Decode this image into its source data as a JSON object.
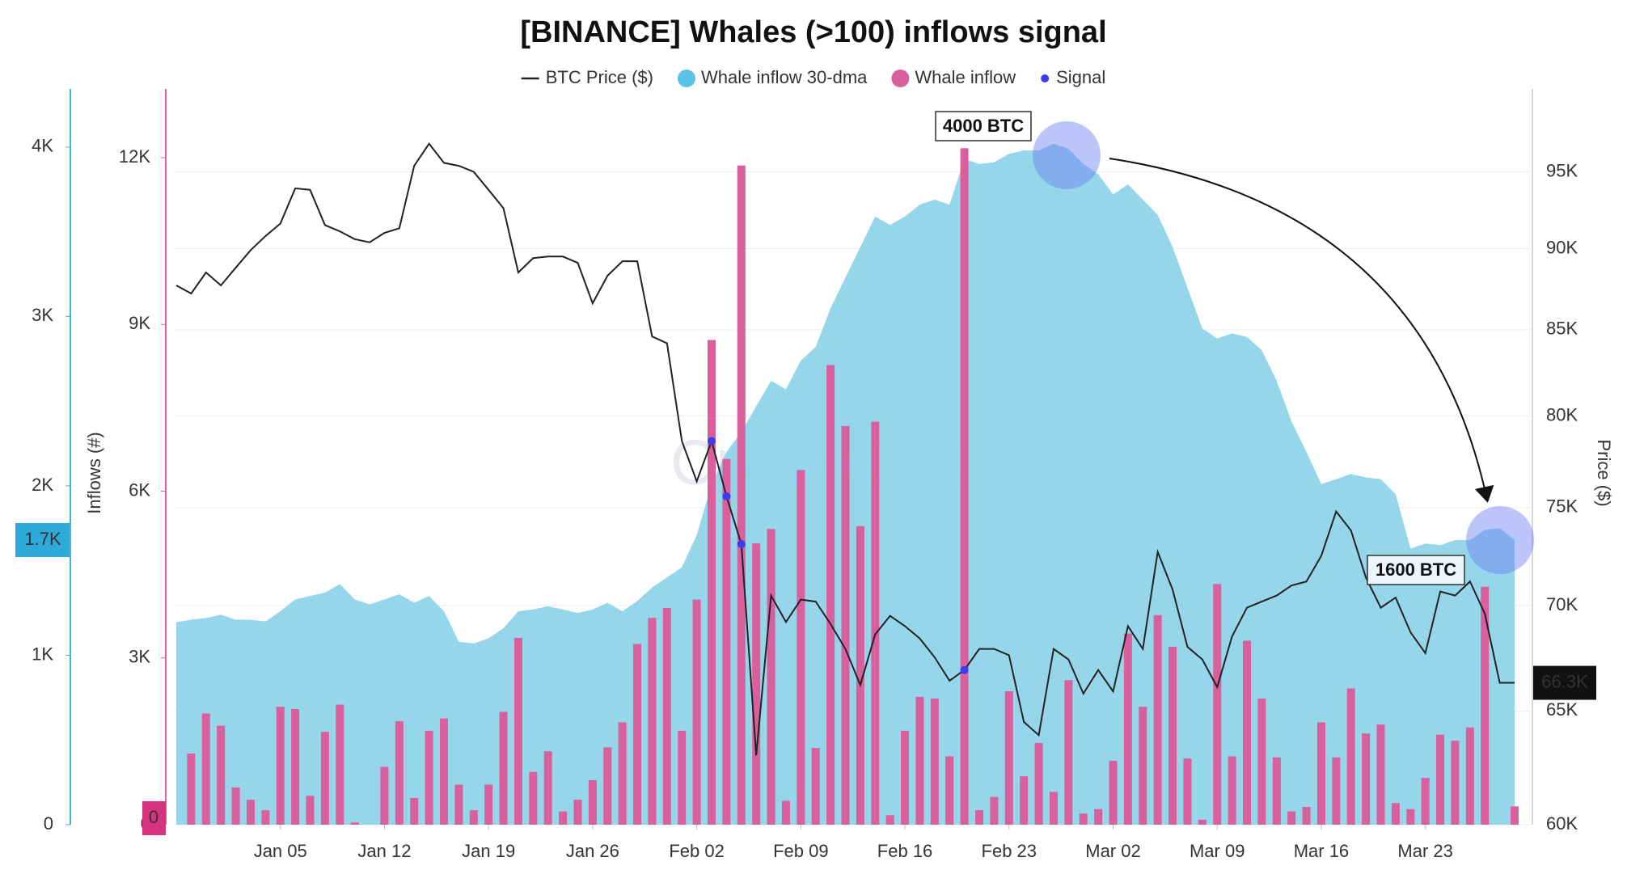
{
  "chart_data": {
    "type": "combo",
    "title": "[BINANCE] Whales (>100) inflows signal",
    "watermark": "CryptoQuant",
    "ylabel": "Inflows (#)",
    "y2label": "Price ($)",
    "categories": [
      null,
      null,
      null,
      null,
      null,
      null,
      null,
      "Jan 05",
      null,
      null,
      null,
      null,
      null,
      null,
      "Jan 12",
      null,
      null,
      null,
      null,
      null,
      null,
      "Jan 19",
      null,
      null,
      null,
      null,
      null,
      null,
      "Jan 26",
      null,
      null,
      null,
      null,
      null,
      null,
      "Feb 02",
      null,
      null,
      null,
      null,
      null,
      null,
      "Feb 09",
      null,
      null,
      null,
      null,
      null,
      null,
      "Feb 16",
      null,
      null,
      null,
      null,
      null,
      null,
      "Feb 23",
      null,
      null,
      null,
      null,
      null,
      null,
      "Mar 02",
      null,
      null,
      null,
      null,
      null,
      null,
      "Mar 09",
      null,
      null,
      null,
      null,
      null,
      null,
      "Mar 16",
      null,
      null,
      null,
      null,
      null,
      null,
      "Mar 23",
      null,
      null,
      null,
      null,
      null,
      null
    ],
    "ylim": [
      0,
      12800
    ],
    "yticks": [
      0,
      {
        "value": 3000,
        "label": "3K"
      },
      {
        "value": 6000,
        "label": "6K"
      },
      {
        "value": 9000,
        "label": "9K"
      },
      {
        "value": 12000,
        "label": "12K"
      }
    ],
    "y3lim": [
      0,
      4200
    ],
    "y3ticks": [
      0,
      {
        "value": 1000,
        "label": "1K"
      },
      {
        "value": 2000,
        "label": "2K"
      },
      {
        "value": 3000,
        "label": "3K"
      },
      {
        "value": 4000,
        "label": "4K"
      }
    ],
    "y2lim": [
      60000,
      99000
    ],
    "y2log": true,
    "y2ticks": [
      {
        "value": 60000,
        "label": "60K"
      },
      {
        "value": 65000,
        "label": "65K"
      },
      {
        "value": 70000,
        "label": "70K"
      },
      {
        "value": 75000,
        "label": "75K"
      },
      {
        "value": 80000,
        "label": "80K"
      },
      {
        "value": 85000,
        "label": "85K"
      },
      {
        "value": 90000,
        "label": "90K"
      },
      {
        "value": 95000,
        "label": "95K"
      }
    ],
    "grid": true,
    "series": [
      {
        "name": "BTC Price ($)",
        "type": "line",
        "axis": "y2",
        "color": "#222222",
        "values": [
          87700,
          87200,
          88500,
          87700,
          88800,
          89900,
          90800,
          91600,
          93900,
          93800,
          91500,
          91100,
          90600,
          90400,
          91000,
          91300,
          95400,
          96900,
          95600,
          95400,
          95000,
          93800,
          92600,
          88500,
          89400,
          89500,
          89500,
          89100,
          86600,
          88300,
          89200,
          89200,
          84600,
          84200,
          78600,
          76400,
          78600,
          75600,
          73100,
          63000,
          70500,
          69200,
          70300,
          70200,
          69100,
          67900,
          66200,
          68600,
          69500,
          69000,
          68400,
          67500,
          66400,
          66900,
          67900,
          67900,
          67600,
          64500,
          63900,
          67900,
          67400,
          65800,
          66900,
          65900,
          69000,
          67900,
          72700,
          70800,
          68000,
          67400,
          66100,
          68500,
          69900,
          70200,
          70500,
          71000,
          71200,
          72500,
          74800,
          73800,
          71400,
          69900,
          70400,
          68700,
          67700,
          70700,
          70500,
          71200,
          69600,
          66300,
          66300
        ],
        "value_labels": [
          null,
          null,
          null,
          null,
          null,
          null,
          null,
          null,
          null,
          null,
          null,
          null,
          null,
          null,
          null,
          null,
          null,
          null,
          null,
          null,
          null,
          null,
          null,
          null,
          null,
          null,
          null,
          null,
          null,
          null,
          null,
          null,
          null,
          null,
          null,
          null,
          null,
          null,
          null,
          null,
          null,
          null,
          null,
          null,
          null,
          null,
          null,
          null,
          null,
          null,
          null,
          null,
          null,
          null,
          null,
          null,
          null,
          null,
          null,
          null,
          null,
          null,
          null,
          null,
          null,
          null,
          null,
          null,
          null,
          null,
          null,
          null,
          null,
          null,
          null,
          null,
          null,
          null,
          null,
          null,
          null,
          null,
          null,
          null,
          null,
          null,
          null,
          null,
          null,
          null,
          "66.3K"
        ]
      },
      {
        "name": "Whale inflow 30-dma",
        "type": "area",
        "axis": "y3",
        "color": "#8fd4ea",
        "label_color": "#2eaad8",
        "values": [
          1195,
          1210,
          1220,
          1240,
          1210,
          1210,
          1200,
          1260,
          1330,
          1350,
          1370,
          1420,
          1330,
          1300,
          1330,
          1360,
          1310,
          1350,
          1260,
          1080,
          1070,
          1100,
          1160,
          1260,
          1270,
          1290,
          1270,
          1250,
          1270,
          1310,
          1260,
          1320,
          1400,
          1460,
          1520,
          1710,
          2010,
          2200,
          2320,
          2470,
          2620,
          2570,
          2740,
          2820,
          3050,
          3230,
          3410,
          3590,
          3540,
          3590,
          3660,
          3690,
          3660,
          3930,
          3900,
          3910,
          3960,
          3980,
          3980,
          4020,
          3990,
          3900,
          3840,
          3720,
          3780,
          3690,
          3600,
          3410,
          3170,
          2930,
          2870,
          2900,
          2880,
          2800,
          2620,
          2380,
          2200,
          2010,
          2040,
          2070,
          2050,
          2040,
          1950,
          1630,
          1660,
          1650,
          1680,
          1680,
          1740,
          1750,
          1680
        ],
        "value_labels": [
          null,
          null,
          null,
          null,
          null,
          null,
          null,
          null,
          null,
          null,
          null,
          null,
          null,
          null,
          null,
          null,
          null,
          null,
          null,
          null,
          null,
          null,
          null,
          null,
          null,
          null,
          null,
          null,
          null,
          null,
          null,
          null,
          null,
          null,
          null,
          null,
          null,
          null,
          null,
          null,
          null,
          null,
          null,
          null,
          null,
          null,
          null,
          null,
          null,
          null,
          null,
          null,
          null,
          null,
          null,
          null,
          null,
          null,
          null,
          null,
          null,
          null,
          null,
          null,
          null,
          null,
          null,
          null,
          null,
          null,
          null,
          null,
          null,
          null,
          null,
          null,
          null,
          null,
          null,
          null,
          null,
          null,
          null,
          null,
          null,
          null,
          null,
          null,
          null,
          null,
          "1.7K"
        ]
      },
      {
        "name": "Whale inflow",
        "type": "bar",
        "axis": "y",
        "color": "#d9609d",
        "values": [
          0,
          1280,
          2000,
          1780,
          670,
          450,
          260,
          2120,
          2080,
          520,
          1670,
          2160,
          40,
          0,
          1040,
          1860,
          480,
          1690,
          1910,
          720,
          260,
          720,
          2030,
          3360,
          950,
          1320,
          240,
          450,
          800,
          1390,
          1840,
          3250,
          3720,
          3900,
          1690,
          4050,
          8720,
          6580,
          11860,
          5060,
          5320,
          430,
          6380,
          1380,
          8270,
          7170,
          5370,
          7250,
          170,
          1690,
          2300,
          2270,
          1230,
          12170,
          260,
          500,
          2400,
          870,
          1470,
          590,
          2600,
          200,
          280,
          1150,
          3440,
          2120,
          3770,
          3200,
          1190,
          90,
          4330,
          1230,
          3310,
          2270,
          1210,
          240,
          320,
          1840,
          1210,
          2450,
          1640,
          1800,
          390,
          280,
          840,
          1620,
          1510,
          1750,
          4280,
          0,
          330
        ]
      },
      {
        "name": "Signal",
        "type": "scatter",
        "axis": "y2",
        "color": "#3d3df0",
        "values": [
          null,
          null,
          null,
          null,
          null,
          null,
          null,
          null,
          null,
          null,
          null,
          null,
          null,
          null,
          null,
          null,
          null,
          null,
          null,
          null,
          null,
          null,
          null,
          null,
          null,
          null,
          null,
          null,
          null,
          null,
          null,
          null,
          null,
          null,
          null,
          null,
          78600,
          75600,
          73100,
          null,
          null,
          null,
          null,
          null,
          null,
          null,
          null,
          null,
          null,
          null,
          null,
          null,
          null,
          66900,
          null,
          null,
          null,
          null,
          null,
          null,
          null,
          null,
          null,
          null,
          null,
          null,
          null,
          null,
          null,
          null,
          null,
          null,
          null,
          null,
          null,
          null,
          null,
          null,
          null,
          null,
          null,
          null,
          null,
          null,
          null,
          null,
          null,
          null,
          null,
          null,
          null
        ]
      }
    ],
    "annotations": [
      {
        "text": "4000 BTC"
      },
      {
        "text": "1600 BTC"
      },
      {
        "text": "0"
      }
    ]
  }
}
